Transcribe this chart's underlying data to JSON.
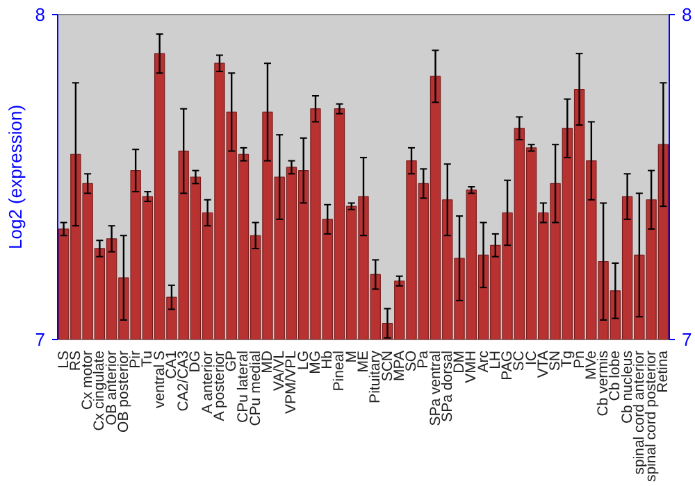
{
  "chart_data": {
    "type": "bar",
    "ylabel": "Log2 (expression)",
    "categories": [
      "LS",
      "RS",
      "Cx motor",
      "Cx cingulate",
      "OB anterior",
      "OB posterior",
      "Pir",
      "Tu",
      "ventral S",
      "CA1",
      "CA2/CA3",
      "DG",
      "A anterior",
      "A posterior",
      "GP",
      "CPu lateral",
      "CPu medial",
      "MD",
      "VA/VL",
      "VPM/VPL",
      "LG",
      "MG",
      "Hb",
      "Pineal",
      "M",
      "ME",
      "Pituitary",
      "SCN",
      "MPA",
      "SO",
      "Pa",
      "SPa ventral",
      "SPa dorsal",
      "DM",
      "VMH",
      "Arc",
      "LH",
      "PAG",
      "SC",
      "IC",
      "VTA",
      "SN",
      "Tg",
      "Pn",
      "MVe",
      "Cb vermis",
      "Cb lobe",
      "Cb nucleus",
      "spinal cord anterior",
      "spinal cord posterior",
      "Retina"
    ],
    "values": [
      7.34,
      7.57,
      7.48,
      7.28,
      7.31,
      7.19,
      7.52,
      7.44,
      7.88,
      7.13,
      7.58,
      7.5,
      7.39,
      7.85,
      7.7,
      7.57,
      7.32,
      7.7,
      7.5,
      7.53,
      7.52,
      7.71,
      7.37,
      7.71,
      7.41,
      7.44,
      7.2,
      7.05,
      7.18,
      7.55,
      7.48,
      7.81,
      7.43,
      7.25,
      7.46,
      7.26,
      7.29,
      7.39,
      7.65,
      7.59,
      7.39,
      7.48,
      7.65,
      7.77,
      7.55,
      7.24,
      7.15,
      7.44,
      7.26,
      7.43,
      7.6
    ],
    "errors": [
      0.02,
      0.22,
      0.03,
      0.025,
      0.04,
      0.13,
      0.065,
      0.015,
      0.06,
      0.037,
      0.13,
      0.02,
      0.04,
      0.025,
      0.12,
      0.02,
      0.04,
      0.15,
      0.13,
      0.02,
      0.1,
      0.04,
      0.045,
      0.015,
      0.01,
      0.12,
      0.045,
      0.045,
      0.015,
      0.04,
      0.045,
      0.08,
      0.11,
      0.13,
      0.01,
      0.1,
      0.035,
      0.1,
      0.035,
      0.01,
      0.03,
      0.12,
      0.09,
      0.11,
      0.12,
      0.18,
      0.085,
      0.07,
      0.19,
      0.09,
      0.19
    ],
    "color": "#b83232",
    "ylim": [
      7,
      8
    ],
    "yticks": [
      7,
      8
    ],
    "y2lim": [
      7,
      8
    ],
    "y2ticks": [
      7,
      8
    ],
    "grid": false
  }
}
